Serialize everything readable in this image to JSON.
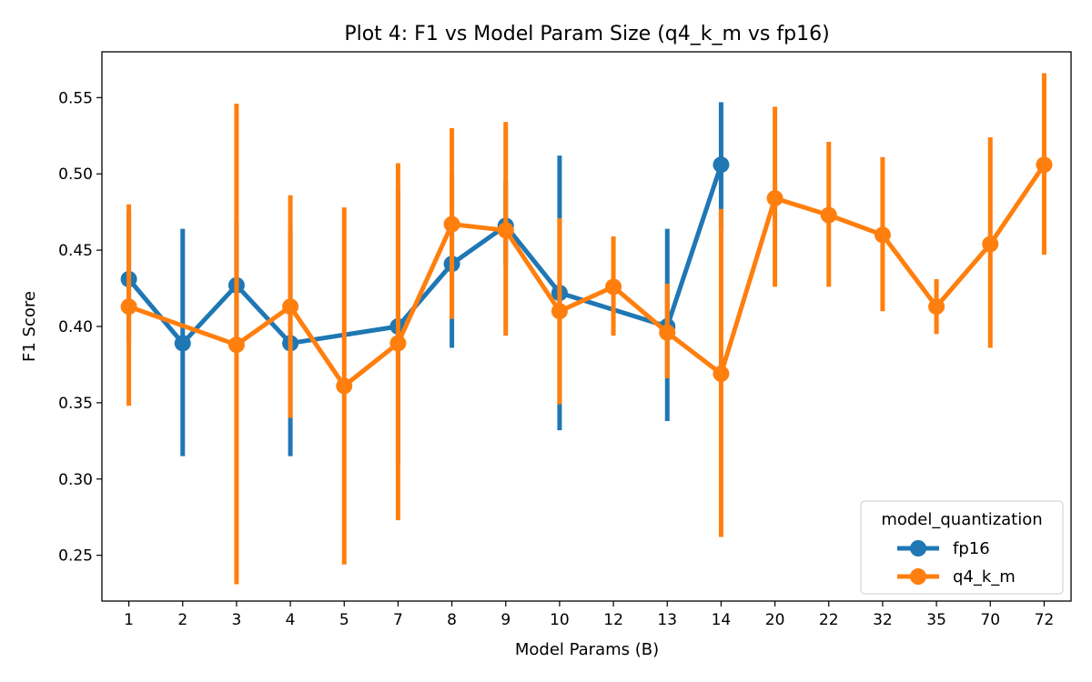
{
  "chart_data": {
    "type": "line",
    "title": "Plot 4: F1 vs Model Param Size (q4_k_m vs fp16)",
    "xlabel": "Model Params (B)",
    "ylabel": "F1 Score",
    "categories": [
      "1",
      "2",
      "3",
      "4",
      "5",
      "7",
      "8",
      "9",
      "10",
      "12",
      "13",
      "14",
      "20",
      "22",
      "32",
      "35",
      "70",
      "72"
    ],
    "ylim": [
      0.22,
      0.58
    ],
    "yticks": [
      "0.25",
      "0.30",
      "0.35",
      "0.40",
      "0.45",
      "0.50",
      "0.55"
    ],
    "grid": false,
    "legend": {
      "title": "model_quantization",
      "placement": "lower-right"
    },
    "series": [
      {
        "name": "fp16",
        "color": "#1f77b4",
        "values": [
          0.431,
          0.389,
          0.427,
          0.389,
          null,
          0.4,
          0.441,
          0.466,
          0.422,
          null,
          0.4,
          0.506,
          null,
          null,
          null,
          null,
          null,
          null
        ],
        "err_low": [
          0.39,
          0.315,
          0.386,
          0.315,
          null,
          0.31,
          0.386,
          0.44,
          0.332,
          null,
          0.338,
          0.465,
          null,
          null,
          null,
          null,
          null,
          null
        ],
        "err_high": [
          0.475,
          0.464,
          0.468,
          0.463,
          null,
          0.49,
          0.5,
          0.495,
          0.512,
          null,
          0.464,
          0.547,
          null,
          null,
          null,
          null,
          null,
          null
        ]
      },
      {
        "name": "q4_k_m",
        "color": "#ff7f0e",
        "values": [
          0.413,
          null,
          0.388,
          0.413,
          0.361,
          0.389,
          0.467,
          0.463,
          0.41,
          0.426,
          0.396,
          0.369,
          0.484,
          0.473,
          0.46,
          0.413,
          0.454,
          0.506
        ],
        "err_low": [
          0.348,
          null,
          0.231,
          0.34,
          0.244,
          0.273,
          0.405,
          0.394,
          0.349,
          0.394,
          0.366,
          0.262,
          0.426,
          0.426,
          0.41,
          0.395,
          0.386,
          0.447
        ],
        "err_high": [
          0.48,
          null,
          0.546,
          0.486,
          0.478,
          0.507,
          0.53,
          0.534,
          0.471,
          0.459,
          0.428,
          0.477,
          0.544,
          0.521,
          0.511,
          0.431,
          0.524,
          0.566
        ]
      }
    ]
  }
}
